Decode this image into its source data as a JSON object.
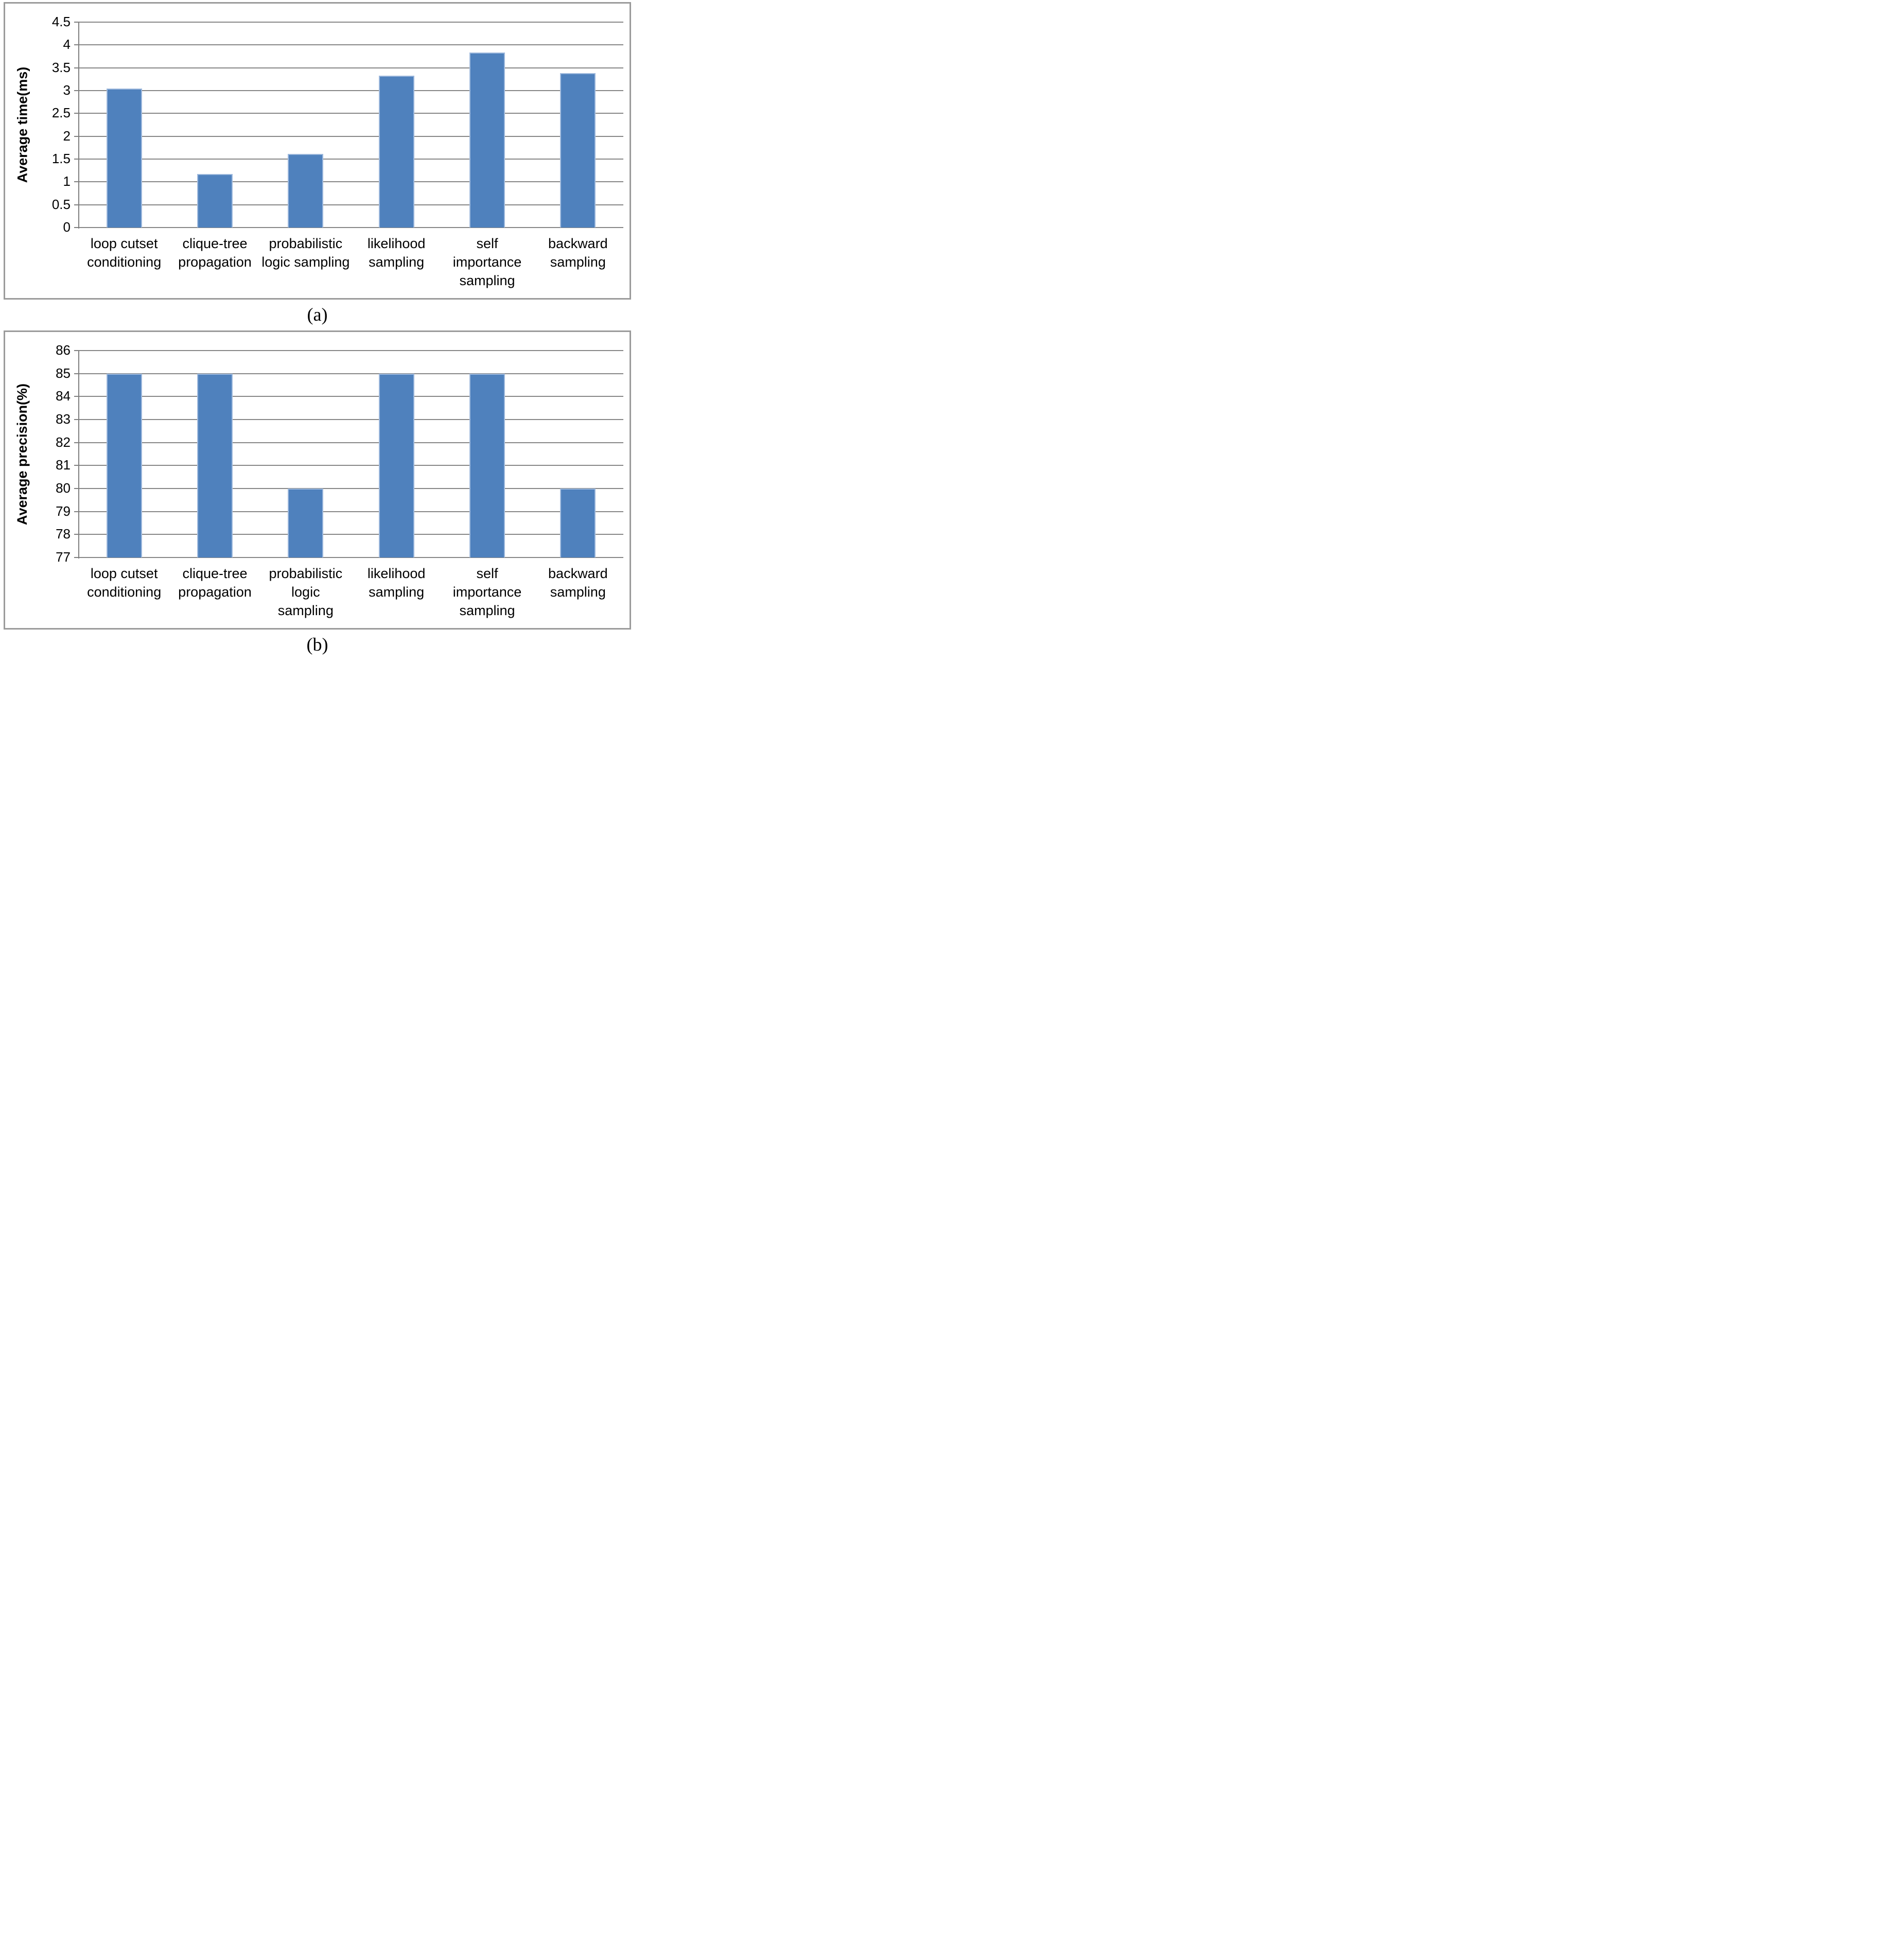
{
  "figure": {
    "captions": [
      "(a)",
      "(b)"
    ]
  },
  "colors": {
    "bar": "#4F81BD",
    "bar_edge": "#9EB9DD",
    "grid": "#878787",
    "axis": "#7F7F7F",
    "panel_border": "#9B9B9B",
    "text": "#000000",
    "background": "#FFFFFF"
  },
  "chart_data": [
    {
      "type": "bar",
      "panel": "a",
      "title": "",
      "xlabel": "",
      "ylabel": "Average time(ms)",
      "ylim": [
        0,
        4.5
      ],
      "ytick_labels_top_to_bottom": [
        "4.5",
        "4",
        "3.5",
        "3",
        "2.5",
        "2",
        "1.5",
        "1",
        "0.5",
        "0"
      ],
      "grid": true,
      "legend_position": "none",
      "categories": [
        [
          "loop cutset",
          "conditioning"
        ],
        [
          "clique-tree",
          "propagation"
        ],
        [
          "probabilistic",
          "logic sampling"
        ],
        [
          "likelihood",
          "sampling"
        ],
        [
          "self",
          "importance",
          "sampling"
        ],
        [
          "backward",
          "sampling"
        ]
      ],
      "values": [
        3.05,
        1.17,
        1.61,
        3.33,
        3.83,
        3.38
      ]
    },
    {
      "type": "bar",
      "panel": "b",
      "title": "",
      "xlabel": "",
      "ylabel": "Average precision(%)",
      "ylim": [
        77,
        86
      ],
      "ytick_labels_top_to_bottom": [
        "86",
        "85",
        "84",
        "83",
        "82",
        "81",
        "80",
        "79",
        "78",
        "77"
      ],
      "grid": true,
      "legend_position": "none",
      "categories": [
        [
          "loop cutset",
          "conditioning"
        ],
        [
          "clique-tree",
          "propagation"
        ],
        [
          "probabilistic",
          "logic",
          "sampling"
        ],
        [
          "likelihood",
          "sampling"
        ],
        [
          "self",
          "importance",
          "sampling"
        ],
        [
          "backward",
          "sampling"
        ]
      ],
      "values": [
        85,
        85,
        80,
        85,
        85,
        80
      ]
    }
  ]
}
